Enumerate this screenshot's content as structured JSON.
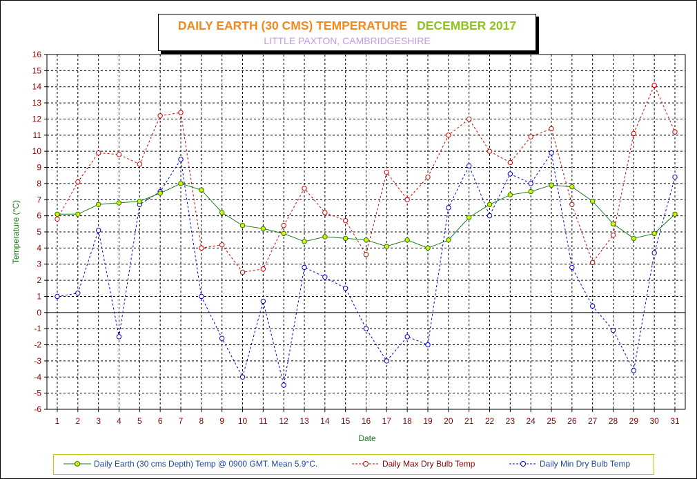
{
  "title": {
    "main": "DAILY EARTH (30 CMS) TEMPERATURE",
    "period": "DECEMBER 2017",
    "subtitle": "LITTLE PAXTON, CAMBRIDGESHIRE"
  },
  "colors": {
    "title_main": "#f08a1c",
    "title_period": "#8fc31f",
    "subtitle": "#c39ae8",
    "earth_line": "#1a7a1a",
    "earth_marker": "#e2ef00",
    "max_line": "#cc0000",
    "min_line": "#0000cc",
    "axis_label": "#1a7a1a",
    "tick_label": "#8b0000"
  },
  "chart_data": {
    "type": "line",
    "title": "DAILY EARTH (30 CMS) TEMPERATURE   DECEMBER 2017",
    "subtitle": "LITTLE PAXTON, CAMBRIDGESHIRE",
    "xlabel": "Date",
    "ylabel": "Temperature (°C)",
    "ylim": [
      -6,
      16
    ],
    "yticks": [
      -6,
      -5,
      -4,
      -3,
      -2,
      -1,
      0,
      1,
      2,
      3,
      4,
      5,
      6,
      7,
      8,
      9,
      10,
      11,
      12,
      13,
      14,
      15,
      16
    ],
    "categories": [
      "1",
      "2",
      "3",
      "4",
      "5",
      "6",
      "7",
      "8",
      "9",
      "10",
      "11",
      "12",
      "13",
      "14",
      "15",
      "16",
      "17",
      "18",
      "19",
      "20",
      "21",
      "22",
      "23",
      "24",
      "25",
      "26",
      "27",
      "28",
      "29",
      "30",
      "31"
    ],
    "grid": true,
    "legend_position": "bottom",
    "series": [
      {
        "name": "Daily Earth (30 cms Depth) Temp @ 0900 GMT. Mean 5.9°C.",
        "style": "solid",
        "values": [
          6.1,
          6.1,
          6.7,
          6.8,
          6.9,
          7.4,
          8.0,
          7.6,
          6.2,
          5.4,
          5.2,
          4.9,
          4.4,
          4.7,
          4.6,
          4.5,
          4.1,
          4.5,
          4.0,
          4.5,
          5.9,
          6.7,
          7.3,
          7.5,
          7.9,
          7.8,
          6.9,
          5.5,
          4.6,
          4.9,
          6.1
        ]
      },
      {
        "name": "Daily Max Dry Bulb Temp",
        "style": "dashed",
        "values": [
          5.8,
          8.1,
          9.9,
          9.8,
          9.2,
          12.2,
          12.4,
          4.0,
          4.2,
          2.5,
          2.7,
          5.4,
          7.7,
          6.2,
          5.7,
          3.6,
          8.7,
          7.0,
          8.4,
          11.0,
          12.0,
          10.0,
          9.3,
          10.9,
          11.4,
          6.7,
          3.1,
          4.8,
          11.1,
          14.1,
          11.2
        ]
      },
      {
        "name": "Daily Min Dry Bulb Temp",
        "style": "dashed",
        "values": [
          1.0,
          1.2,
          5.1,
          -1.5,
          6.7,
          7.5,
          9.5,
          1.0,
          -1.6,
          -4.0,
          0.7,
          -4.5,
          2.8,
          2.2,
          1.5,
          -1.0,
          -3.0,
          -1.5,
          -2.0,
          6.5,
          9.1,
          6.0,
          8.6,
          8.0,
          9.9,
          2.8,
          0.4,
          -1.1,
          -3.6,
          3.7,
          8.4
        ]
      }
    ]
  }
}
